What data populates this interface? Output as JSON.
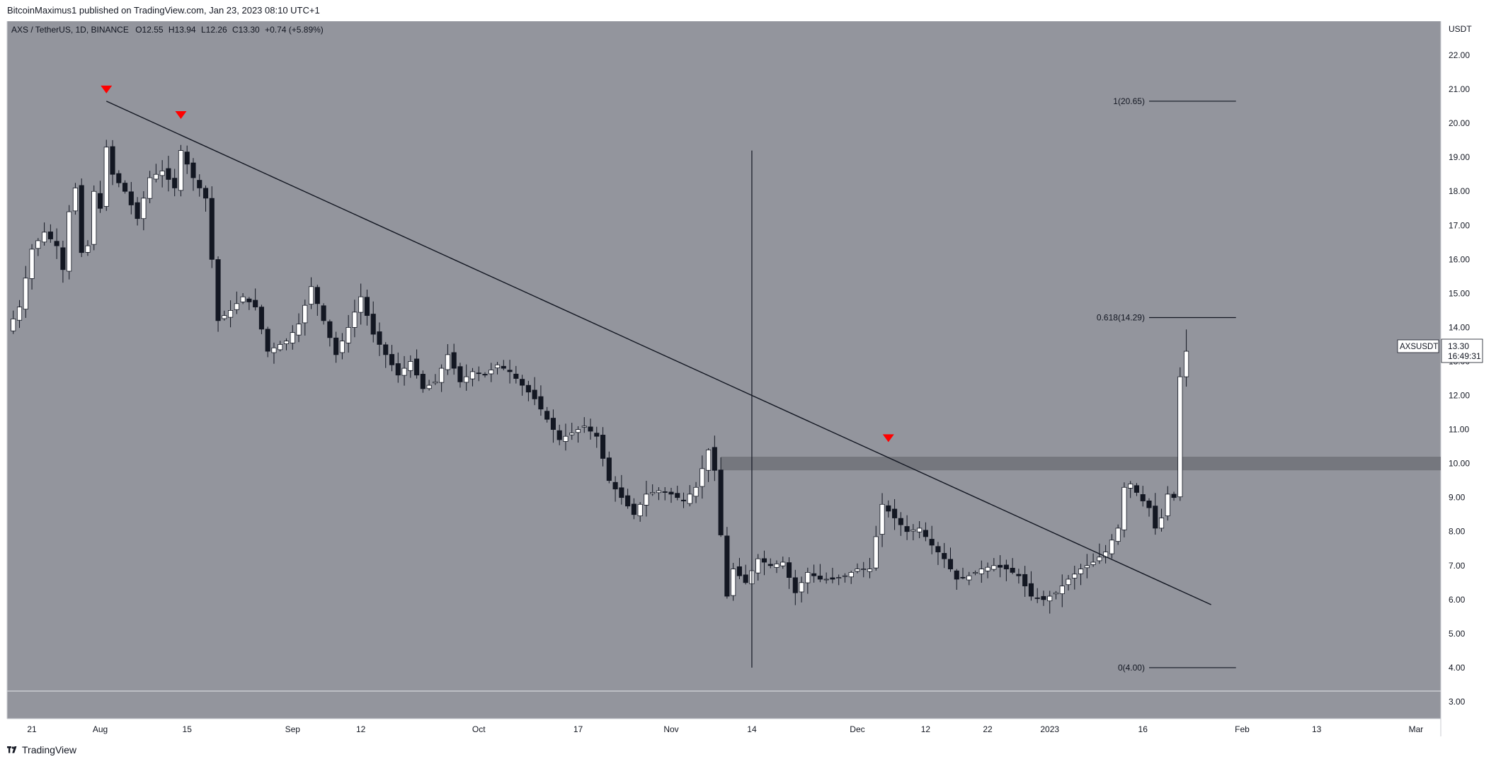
{
  "header": {
    "publisher": "BitcoinMaximus1",
    "published_on": "published on TradingView.com,",
    "datetime": "Jan 23, 2023 08:10 UTC+1"
  },
  "legend": {
    "symbol": "AXS / TetherUS, 1D, BINANCE",
    "o_label": "O",
    "o_value": "12.55",
    "h_label": "H",
    "h_value": "13.94",
    "l_label": "L",
    "l_value": "12.26",
    "c_label": "C",
    "c_value": "13.30",
    "change": "+0.74 (+5.89%)"
  },
  "price_axis": {
    "currency": "USDT",
    "ticks": [
      "22.00",
      "21.00",
      "20.00",
      "19.00",
      "18.00",
      "17.00",
      "16.00",
      "15.00",
      "14.00",
      "13.00",
      "12.00",
      "11.00",
      "10.00",
      "9.00",
      "8.00",
      "7.00",
      "6.00",
      "5.00",
      "4.00",
      "3.00"
    ]
  },
  "price_tag": {
    "symbol": "AXSUSDT",
    "price": "13.30",
    "countdown": "16:49:31"
  },
  "footer": {
    "logo_text": "TradingView"
  },
  "colors": {
    "background": "#93959d",
    "up_candle": "#ffffff",
    "down_candle": "#131722",
    "marker": "#ff0000",
    "resistance_zone": "#6b6d74"
  },
  "chart_data": {
    "type": "candlestick",
    "symbol": "AXS / TetherUS",
    "timeframe": "1D",
    "exchange": "BINANCE",
    "x_start": "2022-07-17",
    "x_end": "2023-03-05",
    "ylim": [
      2.5,
      23.0
    ],
    "grid": false,
    "x_tick_labels": [
      {
        "date": "2022-07-21",
        "label": "21"
      },
      {
        "date": "2022-08-01",
        "label": "Aug"
      },
      {
        "date": "2022-08-15",
        "label": "15"
      },
      {
        "date": "2022-09-01",
        "label": "Sep"
      },
      {
        "date": "2022-09-12",
        "label": "12"
      },
      {
        "date": "2022-10-01",
        "label": "Oct"
      },
      {
        "date": "2022-10-17",
        "label": "17"
      },
      {
        "date": "2022-11-01",
        "label": "Nov"
      },
      {
        "date": "2022-11-14",
        "label": "14"
      },
      {
        "date": "2022-12-01",
        "label": "Dec"
      },
      {
        "date": "2022-12-12",
        "label": "12"
      },
      {
        "date": "2022-12-22",
        "label": "22"
      },
      {
        "date": "2023-01-01",
        "label": "2023"
      },
      {
        "date": "2023-01-16",
        "label": "16"
      },
      {
        "date": "2023-02-01",
        "label": "Feb"
      },
      {
        "date": "2023-02-13",
        "label": "13"
      },
      {
        "date": "2023-03-01",
        "label": "Mar"
      }
    ],
    "close_path": [
      [
        "2022-07-17",
        13.9
      ],
      [
        "2022-07-19",
        14.6
      ],
      [
        "2022-07-21",
        16.3
      ],
      [
        "2022-07-23",
        16.8
      ],
      [
        "2022-07-25",
        16.4
      ],
      [
        "2022-07-26",
        15.7
      ],
      [
        "2022-07-27",
        17.4
      ],
      [
        "2022-07-28",
        18.1
      ],
      [
        "2022-07-29",
        16.2
      ],
      [
        "2022-07-30",
        16.4
      ],
      [
        "2022-07-31",
        18.0
      ],
      [
        "2022-08-01",
        17.5
      ],
      [
        "2022-08-02",
        19.3
      ],
      [
        "2022-08-03",
        18.5
      ],
      [
        "2022-08-05",
        18.0
      ],
      [
        "2022-08-07",
        17.2
      ],
      [
        "2022-08-09",
        18.4
      ],
      [
        "2022-08-11",
        18.6
      ],
      [
        "2022-08-13",
        18.1
      ],
      [
        "2022-08-14",
        19.2
      ],
      [
        "2022-08-16",
        18.4
      ],
      [
        "2022-08-18",
        17.8
      ],
      [
        "2022-08-19",
        16.0
      ],
      [
        "2022-08-20",
        14.2
      ],
      [
        "2022-08-22",
        14.5
      ],
      [
        "2022-08-24",
        14.9
      ],
      [
        "2022-08-26",
        14.6
      ],
      [
        "2022-08-28",
        13.3
      ],
      [
        "2022-08-31",
        13.6
      ],
      [
        "2022-09-02",
        14.1
      ],
      [
        "2022-09-04",
        15.2
      ],
      [
        "2022-09-06",
        14.2
      ],
      [
        "2022-09-08",
        13.2
      ],
      [
        "2022-09-10",
        14.0
      ],
      [
        "2022-09-12",
        14.9
      ],
      [
        "2022-09-14",
        13.8
      ],
      [
        "2022-09-16",
        13.2
      ],
      [
        "2022-09-18",
        12.6
      ],
      [
        "2022-09-20",
        13.0
      ],
      [
        "2022-09-22",
        12.2
      ],
      [
        "2022-09-24",
        12.4
      ],
      [
        "2022-09-26",
        13.2
      ],
      [
        "2022-09-28",
        12.4
      ],
      [
        "2022-09-30",
        12.7
      ],
      [
        "2022-10-02",
        12.6
      ],
      [
        "2022-10-04",
        12.9
      ],
      [
        "2022-10-06",
        12.7
      ],
      [
        "2022-10-08",
        12.3
      ],
      [
        "2022-10-10",
        11.9
      ],
      [
        "2022-10-12",
        11.3
      ],
      [
        "2022-10-14",
        10.7
      ],
      [
        "2022-10-16",
        10.9
      ],
      [
        "2022-10-18",
        11.1
      ],
      [
        "2022-10-20",
        10.8
      ],
      [
        "2022-10-22",
        9.5
      ],
      [
        "2022-10-24",
        9.0
      ],
      [
        "2022-10-26",
        8.5
      ],
      [
        "2022-10-28",
        9.1
      ],
      [
        "2022-10-30",
        9.2
      ],
      [
        "2022-11-01",
        9.1
      ],
      [
        "2022-11-03",
        8.9
      ],
      [
        "2022-11-05",
        9.3
      ],
      [
        "2022-11-07",
        10.4
      ],
      [
        "2022-11-08",
        9.8
      ],
      [
        "2022-11-09",
        7.9
      ],
      [
        "2022-11-10",
        6.1
      ],
      [
        "2022-11-11",
        6.9
      ],
      [
        "2022-11-13",
        6.5
      ],
      [
        "2022-11-15",
        7.2
      ],
      [
        "2022-11-17",
        7.0
      ],
      [
        "2022-11-19",
        7.1
      ],
      [
        "2022-11-21",
        6.2
      ],
      [
        "2022-11-23",
        6.8
      ],
      [
        "2022-11-25",
        6.6
      ],
      [
        "2022-11-27",
        6.6
      ],
      [
        "2022-11-29",
        6.7
      ],
      [
        "2022-12-01",
        6.9
      ],
      [
        "2022-12-03",
        6.9
      ],
      [
        "2022-12-05",
        8.8
      ],
      [
        "2022-12-07",
        8.4
      ],
      [
        "2022-12-09",
        8.0
      ],
      [
        "2022-12-11",
        8.1
      ],
      [
        "2022-12-13",
        7.6
      ],
      [
        "2022-12-15",
        7.2
      ],
      [
        "2022-12-17",
        6.6
      ],
      [
        "2022-12-19",
        6.7
      ],
      [
        "2022-12-21",
        6.9
      ],
      [
        "2022-12-23",
        7.0
      ],
      [
        "2022-12-25",
        6.9
      ],
      [
        "2022-12-27",
        6.7
      ],
      [
        "2022-12-29",
        6.1
      ],
      [
        "2022-12-31",
        6.0
      ],
      [
        "2023-01-02",
        6.2
      ],
      [
        "2023-01-04",
        6.6
      ],
      [
        "2023-01-06",
        6.9
      ],
      [
        "2023-01-08",
        7.1
      ],
      [
        "2023-01-10",
        7.4
      ],
      [
        "2023-01-12",
        8.1
      ],
      [
        "2023-01-13",
        9.3
      ],
      [
        "2023-01-14",
        9.4
      ],
      [
        "2023-01-16",
        8.9
      ],
      [
        "2023-01-17",
        8.7
      ],
      [
        "2023-01-18",
        8.1
      ],
      [
        "2023-01-19",
        8.4
      ],
      [
        "2023-01-20",
        9.1
      ],
      [
        "2023-01-21",
        9.0
      ],
      [
        "2023-01-22",
        12.55
      ],
      [
        "2023-01-23",
        13.3
      ]
    ],
    "last_candle": {
      "date": "2023-01-23",
      "open": 12.55,
      "high": 13.94,
      "low": 12.26,
      "close": 13.3
    },
    "descending_trendline": {
      "from": [
        "2022-08-02",
        20.65
      ],
      "to": [
        "2023-01-27",
        5.85
      ]
    },
    "vertical_line": {
      "date": "2022-11-14",
      "from_price": 4.0,
      "to_price": 19.2
    },
    "resistance_zone": {
      "from": "2022-11-09",
      "to": "2023-03-05",
      "low": 9.8,
      "high": 10.2
    },
    "top_markers": [
      {
        "date": "2022-08-02",
        "price": 20.65
      },
      {
        "date": "2022-08-14",
        "price": 19.9
      },
      {
        "date": "2022-12-06",
        "price": 10.4
      }
    ],
    "fib_levels": [
      {
        "label": "1(20.65)",
        "price": 20.65
      },
      {
        "label": "0.618(14.29)",
        "price": 14.29
      },
      {
        "label": "0(4.00)",
        "price": 4.0
      }
    ],
    "fib_x_range": [
      "2023-01-17",
      "2023-01-31"
    ]
  }
}
